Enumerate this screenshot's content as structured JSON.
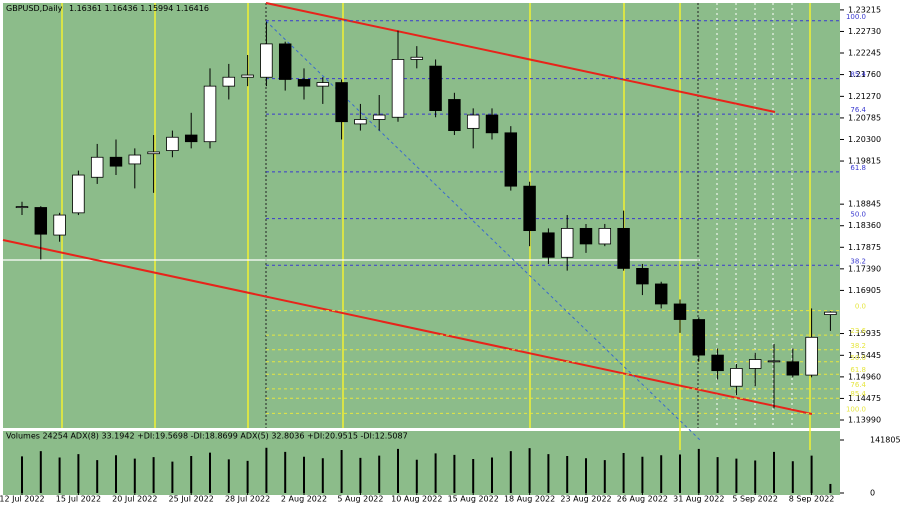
{
  "chart_data": [
    {
      "type": "candlestick",
      "title": "GBPUSD,Daily",
      "categories": [
        "12 Jul 2022",
        null,
        null,
        "15 Jul 2022",
        null,
        null,
        "20 Jul 2022",
        null,
        null,
        "25 Jul 2022",
        null,
        null,
        "28 Jul 2022",
        null,
        null,
        "2 Aug 2022",
        null,
        null,
        "5 Aug 2022",
        null,
        null,
        "10 Aug 2022",
        null,
        null,
        "15 Aug 2022",
        null,
        null,
        "18 Aug 2022",
        null,
        null,
        "23 Aug 2022",
        null,
        null,
        "26 Aug 2022",
        null,
        null,
        "31 Aug 2022",
        null,
        null,
        "5 Sep 2022",
        null,
        null,
        "8 Sep 2022",
        null
      ],
      "open": [
        1.1877,
        1.1877,
        1.1815,
        1.1865,
        1.1945,
        1.199,
        1.1975,
        1.1998,
        1.2005,
        1.204,
        1.2025,
        1.215,
        1.217,
        1.217,
        1.2245,
        1.2165,
        1.215,
        1.2158,
        1.2065,
        1.2075,
        1.208,
        1.221,
        1.2195,
        1.212,
        1.2055,
        1.2085,
        1.2045,
        1.1925,
        1.182,
        1.1765,
        1.183,
        1.1795,
        1.183,
        1.174,
        1.1705,
        1.166,
        1.1625,
        1.1545,
        1.1475,
        1.1515,
        1.153,
        1.153,
        1.15,
        1.16361
      ],
      "high": [
        1.189,
        1.188,
        1.1865,
        1.196,
        1.202,
        1.203,
        1.201,
        1.204,
        1.205,
        1.209,
        1.219,
        1.22,
        1.222,
        1.2295,
        1.225,
        1.219,
        1.217,
        1.2165,
        1.211,
        1.213,
        1.2275,
        1.224,
        1.221,
        1.2135,
        1.21,
        1.21,
        1.206,
        1.1935,
        1.183,
        1.186,
        1.184,
        1.184,
        1.187,
        1.175,
        1.171,
        1.167,
        1.163,
        1.156,
        1.1525,
        1.155,
        1.157,
        1.156,
        1.165,
        1.16436
      ],
      "low": [
        1.186,
        1.176,
        1.18,
        1.186,
        1.193,
        1.195,
        1.192,
        1.191,
        1.199,
        1.201,
        1.201,
        1.212,
        1.215,
        1.215,
        1.214,
        1.212,
        1.211,
        1.203,
        1.205,
        1.205,
        1.207,
        1.219,
        1.208,
        1.204,
        1.201,
        1.203,
        1.1915,
        1.179,
        1.175,
        1.1735,
        1.1775,
        1.179,
        1.1735,
        1.168,
        1.165,
        1.1595,
        1.153,
        1.149,
        1.1455,
        1.1475,
        1.1425,
        1.1495,
        1.1495,
        1.15994
      ],
      "close": [
        1.1879,
        1.1817,
        1.186,
        1.195,
        1.199,
        1.197,
        1.1995,
        1.2002,
        1.2035,
        1.2025,
        1.215,
        1.217,
        1.2175,
        1.2245,
        1.2165,
        1.215,
        1.2158,
        1.207,
        1.2075,
        1.2085,
        1.221,
        1.2215,
        1.2095,
        1.205,
        1.2085,
        1.2045,
        1.1925,
        1.1825,
        1.1765,
        1.183,
        1.1795,
        1.183,
        1.174,
        1.1705,
        1.166,
        1.1625,
        1.1545,
        1.151,
        1.1515,
        1.1535,
        1.1532,
        1.15,
        1.1585,
        1.16416
      ],
      "ylim": [
        1.1381,
        1.2337
      ],
      "yticks": [
        1.23215,
        {
          "value": 1.2273,
          "label": "1.22730"
        },
        1.22245,
        {
          "value": 1.2176,
          "label": "1.21760"
        },
        {
          "value": 1.2127,
          "label": "1.21270"
        },
        1.20785,
        {
          "value": 1.203,
          "label": "1.20300"
        },
        1.19815,
        1.18845,
        {
          "value": 1.1836,
          "label": "1.18360"
        },
        1.17875,
        {
          "value": 1.1739,
          "label": "1.17390"
        },
        1.16905,
        1.15935,
        1.15445,
        {
          "value": 1.1496,
          "label": "1.14960"
        },
        1.14475,
        {
          "value": 1.1399,
          "label": "1.13990"
        }
      ],
      "fib_levels": [
        {
          "value": 1.2297,
          "label": "100.0"
        },
        {
          "value": 1.2167,
          "label": "85.4"
        },
        {
          "value": 1.2087,
          "label": "76.4"
        },
        {
          "value": 1.1957,
          "label": "61.8"
        },
        {
          "value": 1.1852,
          "label": "50.0"
        },
        {
          "value": 1.1747,
          "label": "38.2"
        }
      ],
      "fib_levels_2": [
        {
          "value": 1.1645,
          "label": "0.0"
        },
        {
          "value": 1.159,
          "label": "23.6"
        },
        {
          "value": 1.1557,
          "label": "38.2"
        },
        {
          "value": 1.153,
          "label": "50.0"
        },
        {
          "value": 1.1502,
          "label": "61.8"
        },
        {
          "value": 1.1469,
          "label": "76.4"
        },
        {
          "value": 1.1448,
          "label": "85.4"
        },
        {
          "value": 1.1414,
          "label": "100.0"
        }
      ],
      "bull_color": "#ffffff",
      "bear_color": "#000000",
      "fib_color": "#3a3acf",
      "fib_color_2": "#e6e640"
    },
    {
      "type": "bar",
      "title": "Volumes 24254  ADX(8) 33.1942 +DI:19.5698 -DI:18.8699  ADX(5) 32.8036 +DI:20.9515 -DI:12.5087",
      "values": [
        98000,
        112000,
        95000,
        104000,
        88000,
        101000,
        92000,
        96000,
        84000,
        99000,
        108000,
        90000,
        86000,
        121000,
        110000,
        97000,
        93000,
        115000,
        94000,
        100000,
        118000,
        89000,
        106000,
        102000,
        91000,
        95000,
        112000,
        120000,
        104000,
        99000,
        93000,
        88000,
        107000,
        97000,
        101000,
        103000,
        118000,
        96000,
        92000,
        87000,
        110000,
        85000,
        100000,
        24254
      ],
      "ylim": [
        0,
        141805
      ],
      "yticks": [
        0,
        141805
      ],
      "color": "#000000"
    }
  ]
}
